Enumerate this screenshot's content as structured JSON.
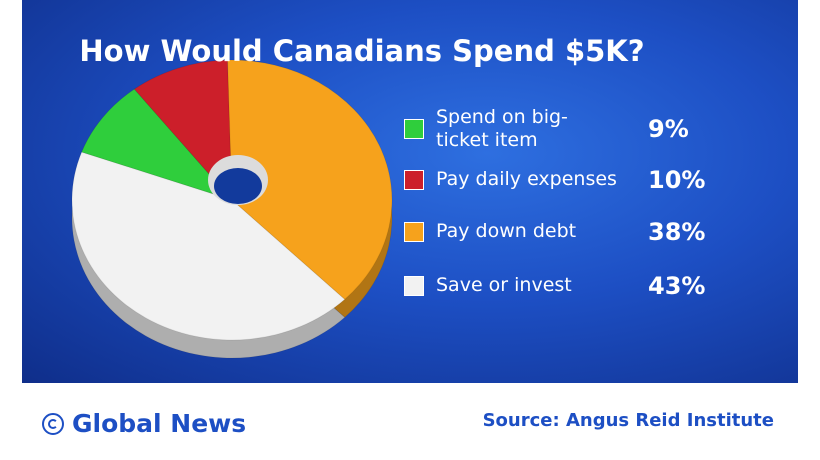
{
  "chart_data": {
    "type": "pie",
    "title": "How Would Canadians Spend $5K?",
    "categories": [
      "Spend on big-ticket item",
      "Pay daily expenses",
      "Pay down debt",
      "Save or invest"
    ],
    "values": [
      9,
      10,
      38,
      43
    ],
    "value_labels": [
      "9%",
      "10%",
      "38%",
      "43%"
    ],
    "colors": [
      "#2fce3c",
      "#cc1f2a",
      "#f6a21c",
      "#f2f2f2"
    ]
  },
  "footer": {
    "brand": "Global News",
    "source": "Source: Angus Reid Institute"
  }
}
